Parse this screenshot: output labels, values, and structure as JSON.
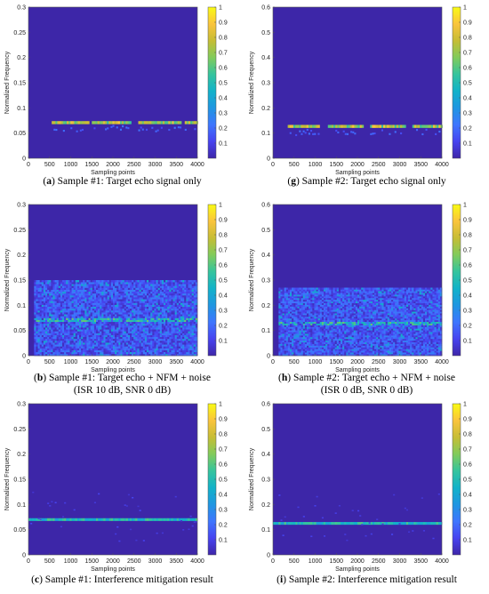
{
  "panels": [
    {
      "id": "a",
      "caption_letter": "a",
      "caption_text": "Sample #1: Target echo signal only",
      "caption_line2": "",
      "chart_data": {
        "type": "heatmap",
        "xlabel": "Sampling points",
        "ylabel": "Normalized Frequency",
        "xlim": [
          0,
          4000
        ],
        "ylim": [
          0,
          0.3
        ],
        "xticks": [
          0,
          500,
          1000,
          1500,
          2000,
          2500,
          3000,
          3500,
          4000
        ],
        "yticks": [
          0,
          0.05,
          0.1,
          0.15,
          0.2,
          0.25,
          0.3
        ],
        "colorbar": {
          "min": 0,
          "max": 1,
          "ticks": [
            0.1,
            0.2,
            0.3,
            0.4,
            0.5,
            0.6,
            0.7,
            0.8,
            0.9,
            1
          ]
        },
        "colormap": "parula",
        "pattern": "echo",
        "band_y": 0.07,
        "segments": [
          [
            550,
            1400
          ],
          [
            1500,
            2400
          ],
          [
            2600,
            3600
          ],
          [
            3700,
            4000
          ]
        ]
      }
    },
    {
      "id": "g",
      "caption_letter": "g",
      "caption_text": "Sample #2: Target echo signal only",
      "caption_line2": "",
      "chart_data": {
        "type": "heatmap",
        "xlabel": "Sampling points",
        "ylabel": "Normalized Frequency",
        "xlim": [
          0,
          4000
        ],
        "ylim": [
          0,
          0.6
        ],
        "xticks": [
          0,
          500,
          1000,
          1500,
          2000,
          2500,
          3000,
          3500,
          4000
        ],
        "yticks": [
          0,
          0.1,
          0.2,
          0.3,
          0.4,
          0.5,
          0.6
        ],
        "colorbar": {
          "min": 0,
          "max": 1,
          "ticks": [
            0.1,
            0.2,
            0.3,
            0.4,
            0.5,
            0.6,
            0.7,
            0.8,
            0.9,
            1
          ]
        },
        "colormap": "parula",
        "pattern": "echo",
        "band_y": 0.125,
        "segments": [
          [
            350,
            1100
          ],
          [
            1300,
            2100
          ],
          [
            2300,
            3100
          ],
          [
            3300,
            4000
          ]
        ]
      }
    },
    {
      "id": "b",
      "caption_letter": "b",
      "caption_text": "Sample #1: Target echo + NFM + noise",
      "caption_line2": "(ISR 10 dB, SNR 0 dB)",
      "chart_data": {
        "type": "heatmap",
        "xlabel": "Sampling points",
        "ylabel": "Normalized Frequency",
        "xlim": [
          0,
          4000
        ],
        "ylim": [
          0,
          0.3
        ],
        "xticks": [
          0,
          500,
          1000,
          1500,
          2000,
          2500,
          3000,
          3500,
          4000
        ],
        "yticks": [
          0,
          0.05,
          0.1,
          0.15,
          0.2,
          0.25,
          0.3
        ],
        "colorbar": {
          "min": 0,
          "max": 1,
          "ticks": [
            0.1,
            0.2,
            0.3,
            0.4,
            0.5,
            0.6,
            0.7,
            0.8,
            0.9,
            1
          ]
        },
        "colormap": "parula",
        "pattern": "noise",
        "band_y": 0.07,
        "noise_top": 0.15
      }
    },
    {
      "id": "h",
      "caption_letter": "h",
      "caption_text": "Sample #2: Target echo + NFM + noise",
      "caption_line2": "(ISR 0 dB, SNR 0 dB)",
      "chart_data": {
        "type": "heatmap",
        "xlabel": "Sampling points",
        "ylabel": "Normalized Frequency",
        "xlim": [
          0,
          4000
        ],
        "ylim": [
          0,
          0.6
        ],
        "xticks": [
          0,
          500,
          1000,
          1500,
          2000,
          2500,
          3000,
          3500,
          4000
        ],
        "yticks": [
          0,
          0.1,
          0.2,
          0.3,
          0.4,
          0.5,
          0.6
        ],
        "colorbar": {
          "min": 0,
          "max": 1,
          "ticks": [
            0.1,
            0.2,
            0.3,
            0.4,
            0.5,
            0.6,
            0.7,
            0.8,
            0.9,
            1
          ]
        },
        "colormap": "parula",
        "pattern": "noise",
        "band_y": 0.125,
        "noise_top": 0.27
      }
    },
    {
      "id": "c",
      "caption_letter": "c",
      "caption_text": "Sample #1: Interference mitigation result",
      "caption_line2": "",
      "chart_data": {
        "type": "heatmap",
        "xlabel": "Sampling points",
        "ylabel": "Normalized Frequency",
        "xlim": [
          0,
          4000
        ],
        "ylim": [
          0,
          0.3
        ],
        "xticks": [
          0,
          500,
          1000,
          1500,
          2000,
          2500,
          3000,
          3500,
          4000
        ],
        "yticks": [
          0,
          0.05,
          0.1,
          0.15,
          0.2,
          0.25,
          0.3
        ],
        "colorbar": {
          "min": 0,
          "max": 1,
          "ticks": [
            0.1,
            0.2,
            0.3,
            0.4,
            0.5,
            0.6,
            0.7,
            0.8,
            0.9,
            1
          ]
        },
        "colormap": "parula",
        "pattern": "mitigated",
        "band_y": 0.07
      }
    },
    {
      "id": "i",
      "caption_letter": "i",
      "caption_text": "Sample #2: Interference mitigation result",
      "caption_line2": "",
      "chart_data": {
        "type": "heatmap",
        "xlabel": "Sampling points",
        "ylabel": "Normalized Frequency",
        "xlim": [
          0,
          4000
        ],
        "ylim": [
          0,
          0.6
        ],
        "xticks": [
          0,
          500,
          1000,
          1500,
          2000,
          2500,
          3000,
          3500,
          4000
        ],
        "yticks": [
          0,
          0.1,
          0.2,
          0.3,
          0.4,
          0.5,
          0.6
        ],
        "colorbar": {
          "min": 0,
          "max": 1,
          "ticks": [
            0.1,
            0.2,
            0.3,
            0.4,
            0.5,
            0.6,
            0.7,
            0.8,
            0.9,
            1
          ]
        },
        "colormap": "parula",
        "pattern": "mitigated",
        "band_y": 0.125
      }
    }
  ],
  "colors": {
    "background": "#3d26a8",
    "parula": [
      "#3e26a8",
      "#4743f0",
      "#3e76fe",
      "#1f96e1",
      "#12b2c9",
      "#35c49d",
      "#81cb5b",
      "#c6bd35",
      "#fac43c",
      "#f9fa14"
    ]
  }
}
